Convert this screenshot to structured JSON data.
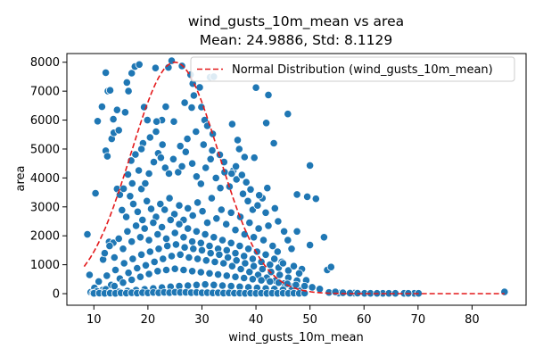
{
  "chart_data": {
    "type": "scatter",
    "title": "wind_gusts_10m_mean vs area",
    "subtitle": "Mean: 24.9886, Std: 8.1129",
    "xlabel": "wind_gusts_10m_mean",
    "ylabel": "area",
    "xlim": [
      5,
      90
    ],
    "ylim": [
      -400,
      8300
    ],
    "x_ticks": [
      10,
      20,
      30,
      40,
      50,
      60,
      70,
      80
    ],
    "y_ticks": [
      0,
      1000,
      2000,
      3000,
      4000,
      5000,
      6000,
      7000,
      8000
    ],
    "grid": false,
    "legend": {
      "placement": "top-right",
      "entries": [
        "Normal Distribution (wind_gusts_10m_mean)"
      ]
    },
    "colors": {
      "points": "#1f77b4",
      "point_edge": "#ffffff",
      "curve": "#e41a1c"
    },
    "curve": {
      "name": "Normal Distribution (wind_gusts_10m_mean)",
      "style": "dashed",
      "mean": 24.9886,
      "std": 8.1129,
      "x_range": [
        8.2,
        86
      ],
      "peak_y": 8000
    },
    "points": [
      [
        8.8,
        2050
      ],
      [
        9.2,
        650
      ],
      [
        10.3,
        3470
      ],
      [
        10.7,
        5960
      ],
      [
        11.5,
        6460
      ],
      [
        12.2,
        7640
      ],
      [
        12.6,
        7000
      ],
      [
        13.0,
        7030
      ],
      [
        12.2,
        4940
      ],
      [
        12.5,
        4750
      ],
      [
        13.3,
        5350
      ],
      [
        13.7,
        5560
      ],
      [
        14.6,
        5650
      ],
      [
        13.6,
        6030
      ],
      [
        14.3,
        6350
      ],
      [
        15.8,
        6270
      ],
      [
        16.1,
        7300
      ],
      [
        16.4,
        7000
      ],
      [
        17.0,
        7620
      ],
      [
        17.6,
        7850
      ],
      [
        18.4,
        7920
      ],
      [
        19.3,
        6450
      ],
      [
        21.4,
        7800
      ],
      [
        23.8,
        7820
      ],
      [
        24.4,
        8050
      ],
      [
        26.3,
        7870
      ],
      [
        27.9,
        7570
      ],
      [
        28.3,
        7260
      ],
      [
        29.6,
        7130
      ],
      [
        31.5,
        7480
      ],
      [
        32.2,
        7500
      ],
      [
        23.3,
        6460
      ],
      [
        22.6,
        6000
      ],
      [
        21.6,
        5950
      ],
      [
        24.8,
        5950
      ],
      [
        26.8,
        6600
      ],
      [
        28.1,
        6430
      ],
      [
        28.5,
        6850
      ],
      [
        29.9,
        6450
      ],
      [
        30.5,
        6000
      ],
      [
        31.0,
        5800
      ],
      [
        32.0,
        5520
      ],
      [
        35.6,
        5860
      ],
      [
        36.6,
        5310
      ],
      [
        36.9,
        5000
      ],
      [
        37.9,
        4720
      ],
      [
        39.7,
        4700
      ],
      [
        40.0,
        7120
      ],
      [
        42.3,
        6870
      ],
      [
        41.9,
        5900
      ],
      [
        43.3,
        5200
      ],
      [
        45.9,
        6210
      ],
      [
        47.6,
        3430
      ],
      [
        49.5,
        3350
      ],
      [
        50.0,
        4430
      ],
      [
        51.1,
        3280
      ],
      [
        52.6,
        1950
      ],
      [
        50.0,
        1680
      ],
      [
        53.2,
        820
      ],
      [
        53.9,
        920
      ],
      [
        55.3,
        20
      ],
      [
        58.2,
        20
      ],
      [
        60.1,
        10
      ],
      [
        63.5,
        10
      ],
      [
        67.4,
        10
      ],
      [
        69.3,
        10
      ],
      [
        70.1,
        10
      ],
      [
        86.0,
        60
      ],
      [
        11.7,
        1180
      ],
      [
        12.8,
        1790
      ],
      [
        13.6,
        1760
      ],
      [
        14.3,
        3620
      ],
      [
        14.8,
        3420
      ],
      [
        15.5,
        3630
      ],
      [
        16.7,
        3370
      ],
      [
        17.1,
        3810
      ],
      [
        16.3,
        4120
      ],
      [
        16.9,
        4600
      ],
      [
        17.7,
        4810
      ],
      [
        18.3,
        4260
      ],
      [
        18.8,
        3620
      ],
      [
        19.5,
        3810
      ],
      [
        20.2,
        4150
      ],
      [
        21.1,
        4550
      ],
      [
        21.9,
        4850
      ],
      [
        22.7,
        5150
      ],
      [
        23.2,
        4350
      ],
      [
        23.9,
        4150
      ],
      [
        24.7,
        4650
      ],
      [
        25.6,
        4200
      ],
      [
        26.3,
        4400
      ],
      [
        27.0,
        4900
      ],
      [
        28.2,
        4500
      ],
      [
        29.0,
        4050
      ],
      [
        29.8,
        3800
      ],
      [
        30.7,
        4350
      ],
      [
        31.6,
        4650
      ],
      [
        32.6,
        4000
      ],
      [
        33.4,
        3650
      ],
      [
        34.2,
        4200
      ],
      [
        35.1,
        3700
      ],
      [
        35.8,
        4250
      ],
      [
        36.4,
        3950
      ],
      [
        37.6,
        3450
      ],
      [
        38.5,
        3200
      ],
      [
        39.4,
        2900
      ],
      [
        40.3,
        3050
      ],
      [
        41.2,
        3300
      ],
      [
        42.1,
        3650
      ],
      [
        43.5,
        2950
      ],
      [
        44.1,
        2500
      ],
      [
        45.2,
        2150
      ],
      [
        45.9,
        1850
      ],
      [
        46.6,
        1550
      ],
      [
        47.6,
        2150
      ],
      [
        48.5,
        850
      ],
      [
        49.3,
        460
      ],
      [
        50.4,
        220
      ],
      [
        51.8,
        160
      ],
      [
        53.5,
        40
      ],
      [
        54.7,
        60
      ],
      [
        56.1,
        30
      ],
      [
        57.4,
        20
      ],
      [
        58.8,
        15
      ],
      [
        61.2,
        10
      ],
      [
        62.4,
        10
      ],
      [
        64.6,
        10
      ],
      [
        65.8,
        10
      ],
      [
        68.2,
        10
      ],
      [
        15.2,
        2890
      ],
      [
        16.0,
        2650
      ],
      [
        17.3,
        3100
      ],
      [
        18.1,
        2830
      ],
      [
        19.0,
        2550
      ],
      [
        19.8,
        3200
      ],
      [
        20.6,
        2930
      ],
      [
        21.5,
        2650
      ],
      [
        22.3,
        3100
      ],
      [
        23.1,
        2900
      ],
      [
        24.0,
        3300
      ],
      [
        24.9,
        2750
      ],
      [
        25.8,
        3050
      ],
      [
        26.6,
        2550
      ],
      [
        27.4,
        2950
      ],
      [
        28.3,
        2700
      ],
      [
        29.2,
        3150
      ],
      [
        30.1,
        2850
      ],
      [
        31.0,
        2450
      ],
      [
        31.8,
        3300
      ],
      [
        32.7,
        2600
      ],
      [
        33.6,
        2900
      ],
      [
        34.5,
        2400
      ],
      [
        35.4,
        2800
      ],
      [
        36.2,
        2200
      ],
      [
        37.1,
        2650
      ],
      [
        37.9,
        2050
      ],
      [
        38.8,
        2450
      ],
      [
        39.6,
        1950
      ],
      [
        40.5,
        2250
      ],
      [
        41.4,
        1850
      ],
      [
        42.3,
        2350
      ],
      [
        43.1,
        1650
      ],
      [
        44.0,
        1450
      ],
      [
        44.8,
        1100
      ],
      [
        12.0,
        1400
      ],
      [
        12.9,
        1650
      ],
      [
        13.8,
        1250
      ],
      [
        14.6,
        1900
      ],
      [
        15.4,
        1550
      ],
      [
        16.2,
        2150
      ],
      [
        17.0,
        1800
      ],
      [
        17.8,
        2350
      ],
      [
        18.6,
        1950
      ],
      [
        19.4,
        2250
      ],
      [
        20.2,
        1850
      ],
      [
        21.0,
        2450
      ],
      [
        21.8,
        2050
      ],
      [
        22.6,
        2300
      ],
      [
        23.4,
        1900
      ],
      [
        24.2,
        2550
      ],
      [
        25.0,
        2100
      ],
      [
        25.8,
        2400
      ],
      [
        26.6,
        1950
      ],
      [
        27.4,
        2250
      ],
      [
        28.2,
        1800
      ],
      [
        29.0,
        2150
      ],
      [
        29.8,
        1750
      ],
      [
        30.6,
        2050
      ],
      [
        31.4,
        1650
      ],
      [
        32.2,
        1950
      ],
      [
        33.0,
        1550
      ],
      [
        33.8,
        1850
      ],
      [
        34.6,
        1500
      ],
      [
        35.4,
        1750
      ],
      [
        36.2,
        1400
      ],
      [
        37.0,
        1650
      ],
      [
        37.8,
        1300
      ],
      [
        38.6,
        1550
      ],
      [
        39.4,
        1200
      ],
      [
        40.2,
        1450
      ],
      [
        41.0,
        1100
      ],
      [
        41.8,
        1350
      ],
      [
        42.6,
        1000
      ],
      [
        43.4,
        1200
      ],
      [
        44.2,
        900
      ],
      [
        45.0,
        1050
      ],
      [
        46.0,
        800
      ],
      [
        47.0,
        950
      ],
      [
        48.0,
        700
      ],
      [
        9.4,
        50
      ],
      [
        10.1,
        200
      ],
      [
        10.9,
        420
      ],
      [
        11.6,
        120
      ],
      [
        12.4,
        620
      ],
      [
        13.2,
        300
      ],
      [
        14.0,
        820
      ],
      [
        14.8,
        520
      ],
      [
        15.6,
        1050
      ],
      [
        16.4,
        720
      ],
      [
        17.2,
        1200
      ],
      [
        18.0,
        880
      ],
      [
        18.8,
        1350
      ],
      [
        19.6,
        980
      ],
      [
        20.4,
        1450
      ],
      [
        21.2,
        1100
      ],
      [
        22.0,
        1550
      ],
      [
        22.8,
        1200
      ],
      [
        23.6,
        1650
      ],
      [
        24.4,
        1300
      ],
      [
        25.2,
        1700
      ],
      [
        26.0,
        1350
      ],
      [
        26.8,
        1600
      ],
      [
        27.6,
        1250
      ],
      [
        28.4,
        1550
      ],
      [
        29.2,
        1200
      ],
      [
        30.0,
        1500
      ],
      [
        30.8,
        1150
      ],
      [
        31.6,
        1400
      ],
      [
        32.4,
        1100
      ],
      [
        33.2,
        1350
      ],
      [
        34.0,
        1050
      ],
      [
        34.8,
        1250
      ],
      [
        35.6,
        950
      ],
      [
        36.4,
        1150
      ],
      [
        37.2,
        850
      ],
      [
        38.0,
        1050
      ],
      [
        38.8,
        750
      ],
      [
        39.6,
        950
      ],
      [
        40.4,
        650
      ],
      [
        41.2,
        850
      ],
      [
        42.0,
        550
      ],
      [
        42.8,
        750
      ],
      [
        43.6,
        450
      ],
      [
        44.4,
        650
      ],
      [
        45.2,
        350
      ],
      [
        46.0,
        550
      ],
      [
        46.8,
        250
      ],
      [
        47.6,
        450
      ],
      [
        48.4,
        150
      ],
      [
        9.8,
        20
      ],
      [
        10.6,
        80
      ],
      [
        11.4,
        30
      ],
      [
        12.2,
        150
      ],
      [
        13.0,
        40
      ],
      [
        13.8,
        260
      ],
      [
        14.6,
        60
      ],
      [
        15.4,
        380
      ],
      [
        16.2,
        90
      ],
      [
        17.0,
        480
      ],
      [
        17.8,
        120
      ],
      [
        18.6,
        580
      ],
      [
        19.4,
        150
      ],
      [
        20.2,
        680
      ],
      [
        21.0,
        180
      ],
      [
        21.8,
        780
      ],
      [
        22.6,
        210
      ],
      [
        23.4,
        820
      ],
      [
        24.2,
        240
      ],
      [
        25.0,
        860
      ],
      [
        25.8,
        260
      ],
      [
        26.6,
        820
      ],
      [
        27.4,
        280
      ],
      [
        28.2,
        780
      ],
      [
        29.0,
        300
      ],
      [
        29.8,
        740
      ],
      [
        30.6,
        320
      ],
      [
        31.4,
        700
      ],
      [
        32.2,
        300
      ],
      [
        33.0,
        660
      ],
      [
        33.8,
        280
      ],
      [
        34.6,
        620
      ],
      [
        35.4,
        260
      ],
      [
        36.2,
        580
      ],
      [
        37.0,
        240
      ],
      [
        37.8,
        540
      ],
      [
        38.6,
        220
      ],
      [
        39.4,
        500
      ],
      [
        40.2,
        200
      ],
      [
        41.0,
        460
      ],
      [
        41.8,
        180
      ],
      [
        42.6,
        420
      ],
      [
        43.4,
        160
      ],
      [
        44.2,
        380
      ],
      [
        45.0,
        140
      ],
      [
        45.8,
        340
      ],
      [
        46.6,
        120
      ],
      [
        47.4,
        300
      ],
      [
        48.2,
        100
      ],
      [
        49.0,
        260
      ],
      [
        10.0,
        10
      ],
      [
        11.0,
        15
      ],
      [
        12.0,
        10
      ],
      [
        13.0,
        20
      ],
      [
        14.0,
        10
      ],
      [
        15.0,
        25
      ],
      [
        16.0,
        15
      ],
      [
        17.0,
        30
      ],
      [
        18.0,
        20
      ],
      [
        19.0,
        35
      ],
      [
        20.0,
        25
      ],
      [
        21.0,
        40
      ],
      [
        22.0,
        30
      ],
      [
        23.0,
        45
      ],
      [
        24.0,
        35
      ],
      [
        25.0,
        50
      ],
      [
        26.0,
        40
      ],
      [
        27.0,
        45
      ],
      [
        28.0,
        35
      ],
      [
        29.0,
        40
      ],
      [
        30.0,
        30
      ],
      [
        31.0,
        35
      ],
      [
        32.0,
        25
      ],
      [
        33.0,
        30
      ],
      [
        34.0,
        20
      ],
      [
        35.0,
        25
      ],
      [
        36.0,
        15
      ],
      [
        37.0,
        20
      ],
      [
        38.0,
        10
      ],
      [
        39.0,
        15
      ],
      [
        40.0,
        10
      ],
      [
        41.0,
        15
      ],
      [
        42.0,
        10
      ],
      [
        43.0,
        15
      ],
      [
        44.0,
        10
      ],
      [
        45.0,
        15
      ],
      [
        46.0,
        10
      ],
      [
        47.0,
        15
      ],
      [
        48.0,
        10
      ],
      [
        49.0,
        15
      ],
      [
        19.1,
        5200
      ],
      [
        20.4,
        5400
      ],
      [
        21.5,
        5600
      ],
      [
        19.9,
        6000
      ],
      [
        18.8,
        5000
      ],
      [
        22.4,
        4700
      ],
      [
        26.0,
        5100
      ],
      [
        27.3,
        5350
      ],
      [
        28.9,
        5600
      ],
      [
        30.3,
        5150
      ],
      [
        31.9,
        4950
      ],
      [
        33.3,
        4800
      ],
      [
        34.1,
        4550
      ],
      [
        35.5,
        4150
      ],
      [
        36.3,
        4400
      ],
      [
        37.4,
        4100
      ],
      [
        38.2,
        3850
      ],
      [
        39.0,
        3600
      ],
      [
        40.6,
        3400
      ],
      [
        41.8,
        2800
      ]
    ]
  }
}
